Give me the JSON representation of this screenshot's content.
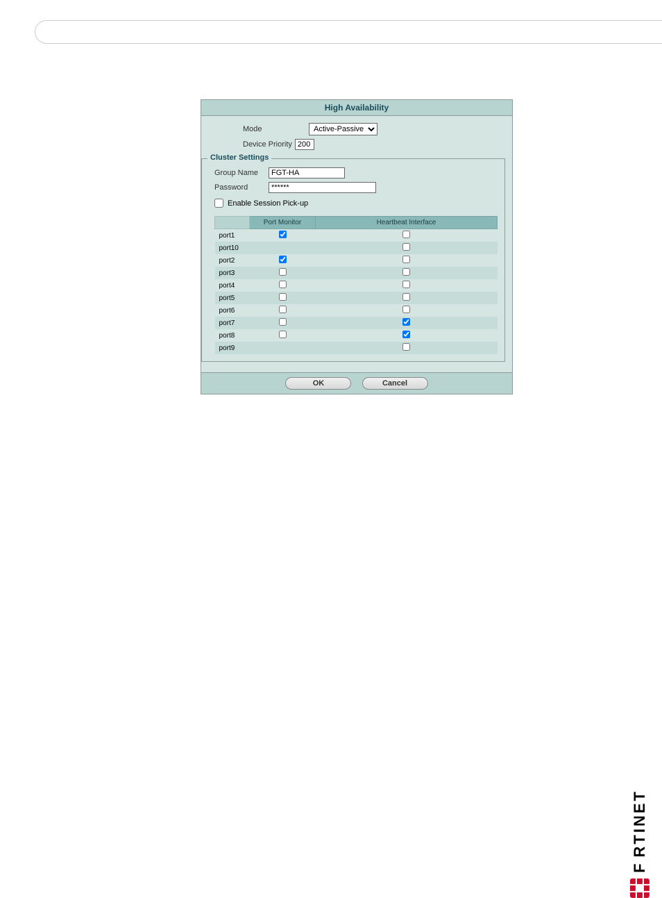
{
  "dialog": {
    "title": "High Availability",
    "mode": {
      "label": "Mode",
      "value": "Active-Passive"
    },
    "devicePriority": {
      "label": "Device Priority",
      "value": "200"
    },
    "clusterSettings": {
      "legend": "Cluster Settings",
      "groupName": {
        "label": "Group Name",
        "value": "FGT-HA"
      },
      "password": {
        "label": "Password",
        "value": "******"
      },
      "sessionPickup": {
        "label": "Enable Session Pick-up",
        "checked": false
      },
      "tableHeaders": {
        "col1": "",
        "col2": "Port Monitor",
        "col3": "Heartbeat Interface"
      },
      "ports": [
        {
          "name": "port1",
          "monitor": true,
          "monitorVisible": true,
          "heartbeat": false
        },
        {
          "name": "port10",
          "monitor": false,
          "monitorVisible": false,
          "heartbeat": false
        },
        {
          "name": "port2",
          "monitor": true,
          "monitorVisible": true,
          "heartbeat": false
        },
        {
          "name": "port3",
          "monitor": false,
          "monitorVisible": true,
          "heartbeat": false
        },
        {
          "name": "port4",
          "monitor": false,
          "monitorVisible": true,
          "heartbeat": false
        },
        {
          "name": "port5",
          "monitor": false,
          "monitorVisible": true,
          "heartbeat": false
        },
        {
          "name": "port6",
          "monitor": false,
          "monitorVisible": true,
          "heartbeat": false
        },
        {
          "name": "port7",
          "monitor": false,
          "monitorVisible": true,
          "heartbeat": true
        },
        {
          "name": "port8",
          "monitor": false,
          "monitorVisible": true,
          "heartbeat": true
        },
        {
          "name": "port9",
          "monitor": false,
          "monitorVisible": false,
          "heartbeat": false
        }
      ]
    },
    "buttons": {
      "ok": "OK",
      "cancel": "Cancel"
    }
  },
  "branding": {
    "logoText": "RTINET",
    "logoPrefix": "F"
  },
  "colors": {
    "headerBg": "#b8d4d0",
    "bodyBg": "#d5e5e2",
    "tableHeaderBg": "#89b8b8",
    "rowOddBg": "#c5dcd8",
    "borderColor": "#8b9a9a",
    "brandRed": "#c8102e"
  }
}
